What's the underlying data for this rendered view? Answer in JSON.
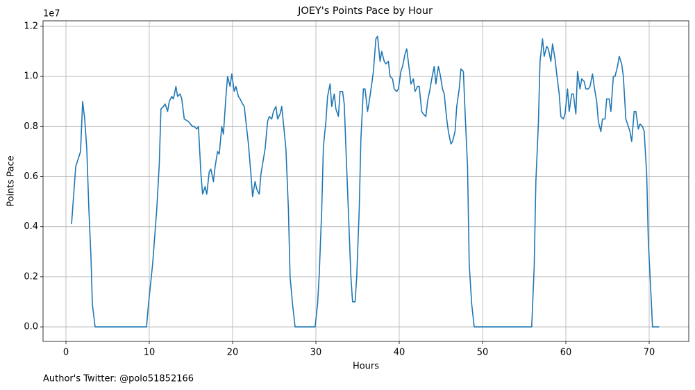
{
  "chart_data": {
    "type": "line",
    "title": "JOEY's Points Pace by Hour",
    "x_label": "Hours",
    "y_label": "Points Pace",
    "y_offset_label": "1e7",
    "footnote": "Author's Twitter: @polo51852166",
    "color": "#1f77b4",
    "grid": true,
    "xlim": [
      -2.75,
      74.75
    ],
    "xticks": [
      0,
      10,
      20,
      30,
      40,
      50,
      60,
      70
    ],
    "ylim": [
      -0.058,
      1.222
    ],
    "yticks": [
      {
        "value": 0,
        "label": "0.0"
      },
      0.2,
      0.4,
      0.6,
      0.8,
      {
        "value": 1,
        "label": "1.0"
      },
      1.2
    ],
    "x": [
      0.67,
      1.17,
      1.75,
      2.0,
      2.25,
      2.5,
      2.75,
      3.0,
      3.17,
      3.5,
      9.67,
      9.9,
      10.4,
      10.9,
      11.2,
      11.4,
      11.7,
      11.9,
      12.2,
      12.4,
      12.7,
      12.9,
      13.2,
      13.4,
      13.7,
      13.9,
      14.2,
      14.7,
      15.2,
      15.4,
      15.7,
      15.9,
      16.2,
      16.4,
      16.7,
      16.9,
      17.2,
      17.4,
      17.7,
      17.9,
      18.2,
      18.4,
      18.7,
      18.9,
      19.2,
      19.4,
      19.7,
      19.9,
      20.2,
      20.4,
      20.7,
      20.9,
      21.2,
      21.4,
      21.7,
      21.9,
      22.2,
      22.4,
      22.7,
      22.9,
      23.2,
      23.4,
      23.7,
      23.9,
      24.2,
      24.4,
      24.7,
      24.9,
      25.2,
      25.4,
      25.7,
      25.9,
      26.2,
      26.4,
      26.7,
      26.9,
      27.2,
      27.5,
      29.9,
      30.2,
      30.4,
      30.7,
      30.9,
      31.2,
      31.4,
      31.7,
      31.9,
      32.2,
      32.4,
      32.7,
      32.9,
      33.2,
      33.4,
      33.7,
      33.9,
      34.2,
      34.4,
      34.7,
      34.9,
      35.2,
      35.4,
      35.7,
      35.9,
      36.2,
      36.4,
      36.7,
      36.9,
      37.2,
      37.4,
      37.7,
      37.9,
      38.2,
      38.4,
      38.7,
      38.9,
      39.2,
      39.4,
      39.7,
      39.9,
      40.2,
      40.4,
      40.7,
      40.9,
      41.2,
      41.4,
      41.7,
      41.9,
      42.2,
      42.4,
      42.7,
      42.9,
      43.2,
      43.4,
      43.7,
      43.9,
      44.2,
      44.4,
      44.7,
      44.9,
      45.2,
      45.4,
      45.7,
      45.9,
      46.2,
      46.4,
      46.7,
      46.9,
      47.2,
      47.4,
      47.7,
      47.9,
      48.2,
      48.4,
      48.7,
      49.0,
      55.9,
      56.2,
      56.4,
      56.7,
      56.9,
      57.2,
      57.4,
      57.7,
      57.9,
      58.2,
      58.4,
      58.7,
      58.9,
      59.2,
      59.4,
      59.7,
      59.9,
      60.2,
      60.4,
      60.7,
      60.9,
      61.2,
      61.4,
      61.7,
      61.9,
      62.2,
      62.4,
      62.7,
      62.9,
      63.2,
      63.4,
      63.7,
      63.9,
      64.2,
      64.4,
      64.7,
      64.9,
      65.2,
      65.4,
      65.7,
      65.9,
      66.2,
      66.4,
      66.7,
      66.9,
      67.2,
      67.4,
      67.7,
      67.9,
      68.2,
      68.4,
      68.7,
      68.9,
      69.2,
      69.4,
      69.7,
      69.9,
      70.2,
      70.4,
      71.2
    ],
    "values": [
      0.41,
      0.64,
      0.7,
      0.9,
      0.83,
      0.71,
      0.47,
      0.28,
      0.09,
      0,
      0,
      0.09,
      0.25,
      0.47,
      0.65,
      0.87,
      0.88,
      0.89,
      0.86,
      0.9,
      0.92,
      0.91,
      0.96,
      0.92,
      0.93,
      0.91,
      0.83,
      0.82,
      0.8,
      0.8,
      0.79,
      0.8,
      0.61,
      0.53,
      0.56,
      0.53,
      0.62,
      0.63,
      0.58,
      0.64,
      0.7,
      0.69,
      0.8,
      0.77,
      0.92,
      1.0,
      0.96,
      1.01,
      0.94,
      0.96,
      0.92,
      0.91,
      0.89,
      0.88,
      0.79,
      0.73,
      0.61,
      0.52,
      0.58,
      0.55,
      0.53,
      0.61,
      0.67,
      0.71,
      0.82,
      0.84,
      0.83,
      0.86,
      0.88,
      0.83,
      0.85,
      0.88,
      0.78,
      0.71,
      0.47,
      0.2,
      0.09,
      0,
      0,
      0.09,
      0.21,
      0.47,
      0.72,
      0.82,
      0.92,
      0.97,
      0.88,
      0.93,
      0.87,
      0.84,
      0.94,
      0.94,
      0.89,
      0.63,
      0.46,
      0.2,
      0.1,
      0.1,
      0.2,
      0.47,
      0.75,
      0.95,
      0.95,
      0.86,
      0.9,
      0.97,
      1.02,
      1.15,
      1.16,
      1.06,
      1.1,
      1.06,
      1.05,
      1.06,
      1.0,
      0.99,
      0.95,
      0.94,
      0.95,
      1.02,
      1.04,
      1.09,
      1.11,
      1.03,
      0.97,
      0.99,
      0.94,
      0.96,
      0.96,
      0.86,
      0.85,
      0.84,
      0.9,
      0.95,
      0.99,
      1.04,
      0.97,
      1.04,
      1.01,
      0.95,
      0.93,
      0.83,
      0.78,
      0.73,
      0.74,
      0.78,
      0.88,
      0.95,
      1.03,
      1.02,
      0.86,
      0.64,
      0.25,
      0.09,
      0,
      0,
      0.24,
      0.58,
      0.81,
      1.06,
      1.15,
      1.08,
      1.12,
      1.11,
      1.06,
      1.13,
      1.07,
      1.01,
      0.93,
      0.84,
      0.83,
      0.85,
      0.95,
      0.86,
      0.93,
      0.93,
      0.85,
      1.02,
      0.95,
      0.99,
      0.98,
      0.95,
      0.95,
      0.96,
      1.01,
      0.96,
      0.9,
      0.82,
      0.78,
      0.83,
      0.83,
      0.91,
      0.91,
      0.86,
      1.0,
      1.0,
      1.04,
      1.08,
      1.05,
      1.0,
      0.83,
      0.81,
      0.78,
      0.74,
      0.86,
      0.86,
      0.79,
      0.81,
      0.8,
      0.78,
      0.61,
      0.34,
      0.14,
      0,
      0
    ]
  }
}
